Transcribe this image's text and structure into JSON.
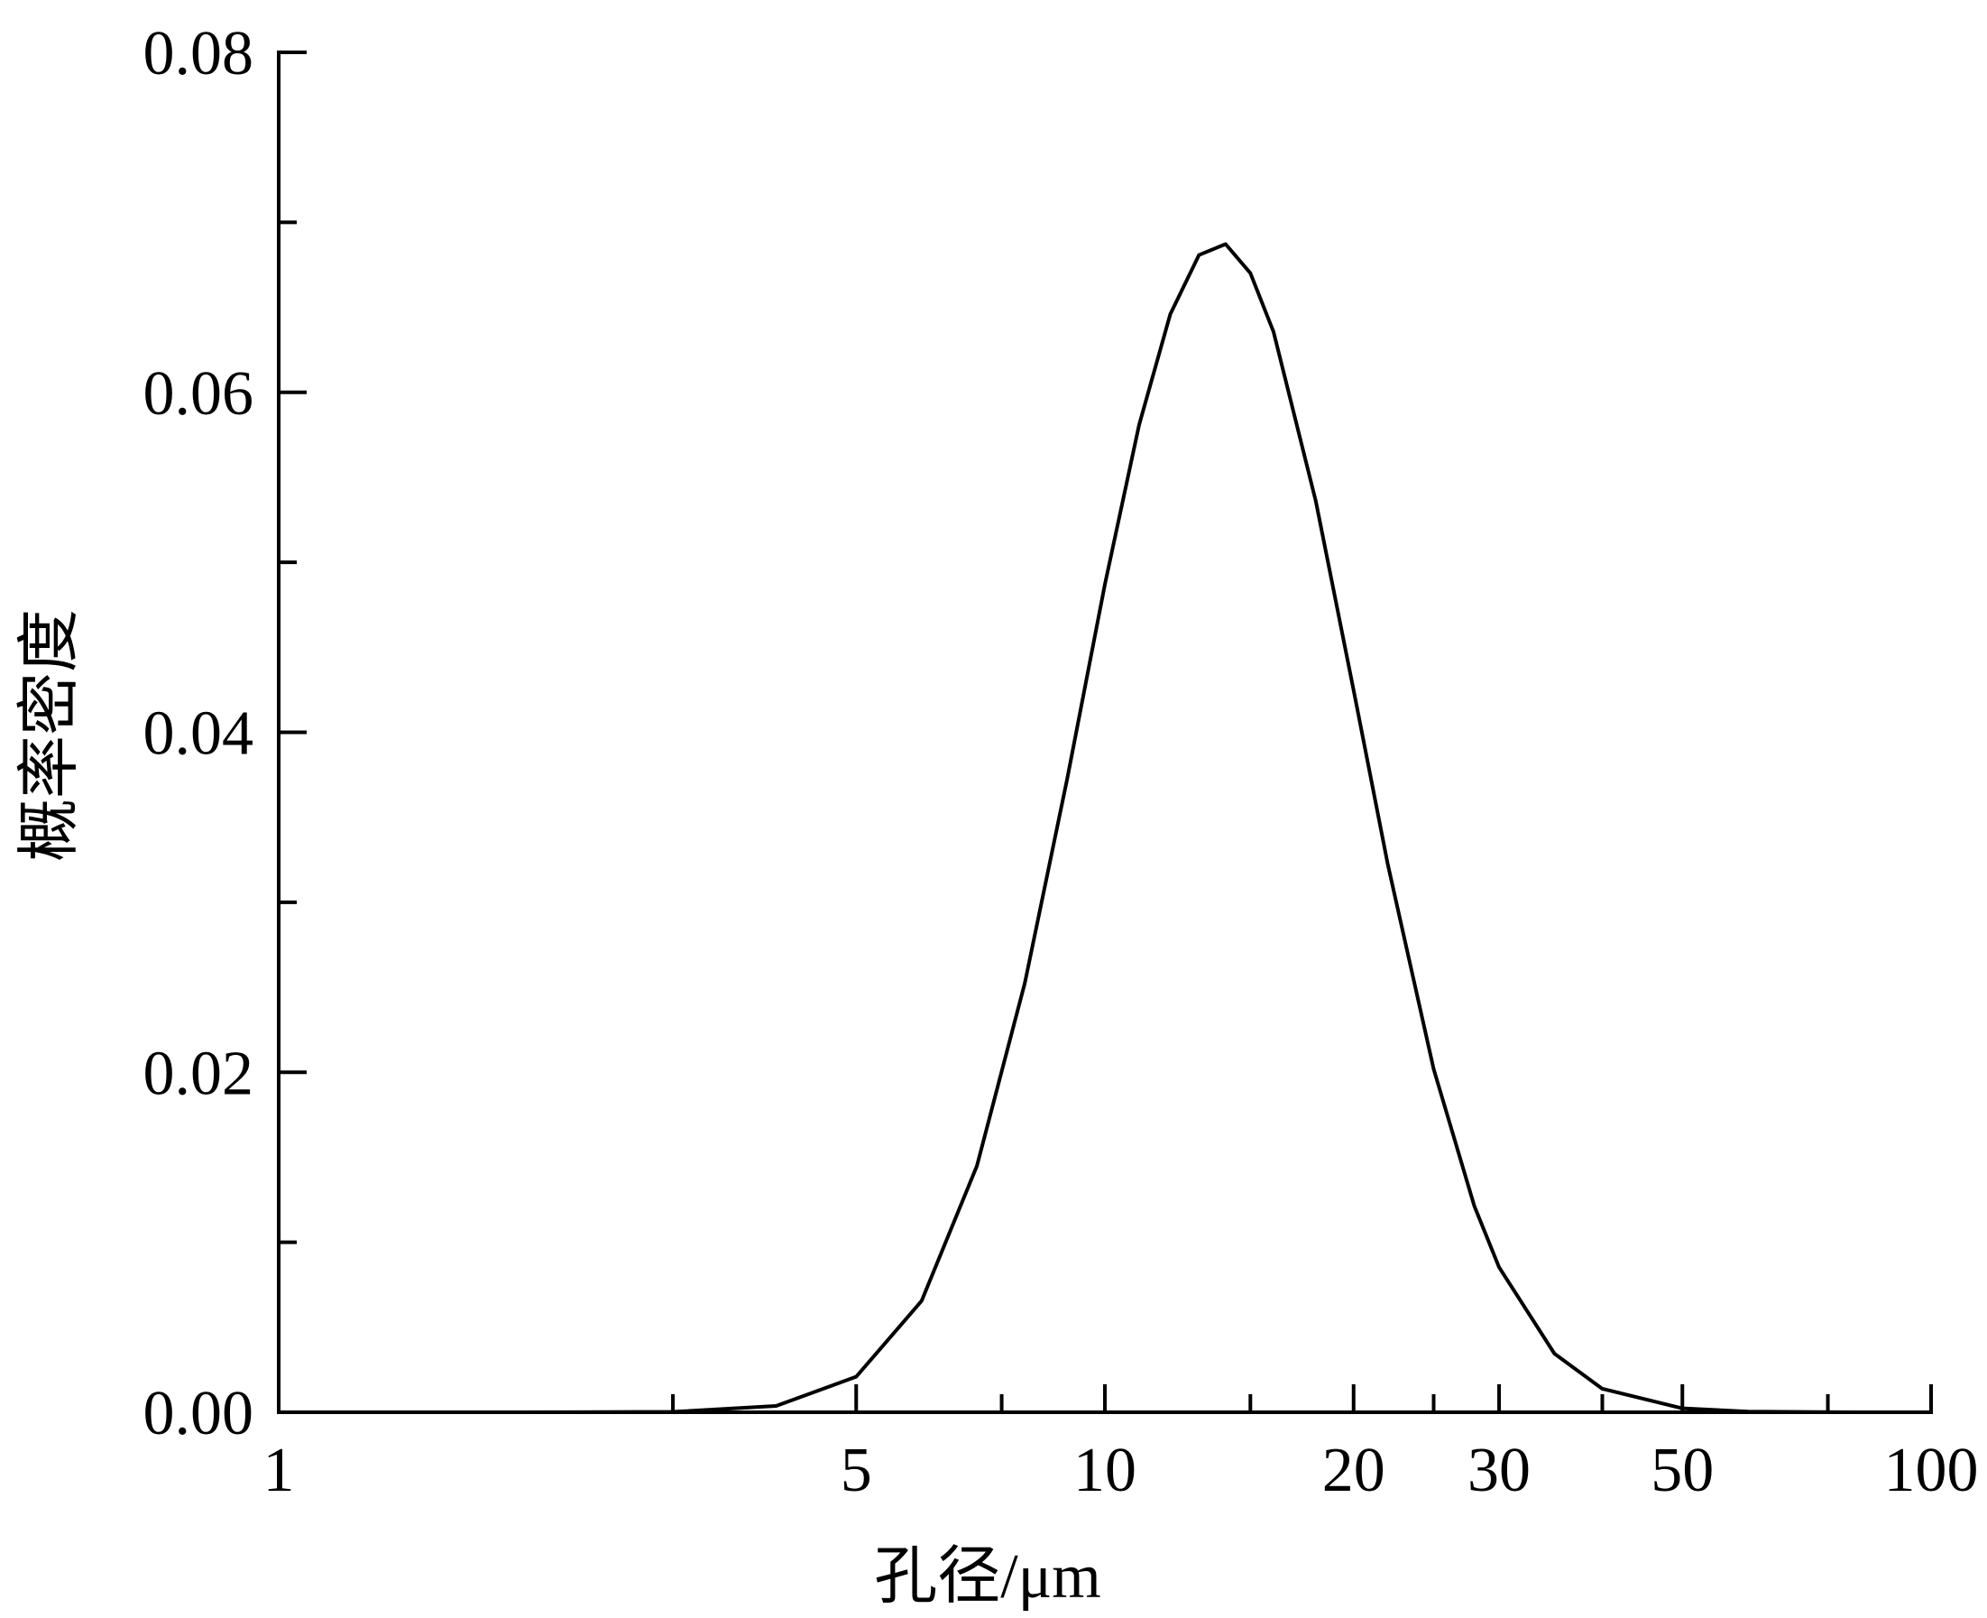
{
  "chart_data": {
    "type": "line",
    "x_label": "孔径/μm",
    "y_label": "概率密度",
    "xscale": "log",
    "grid": false,
    "color": "#000000",
    "x": [
      1,
      2,
      3,
      4,
      5,
      6,
      7,
      8,
      9,
      10,
      11,
      12,
      13,
      14,
      15,
      16,
      18,
      20,
      22,
      25,
      28,
      30,
      35,
      40,
      50,
      60,
      80,
      100
    ],
    "values": [
      0,
      0,
      2.5e-05,
      0.00037,
      0.00209,
      0.00655,
      0.01449,
      0.02525,
      0.03723,
      0.0487,
      0.05808,
      0.0646,
      0.06808,
      0.06872,
      0.06701,
      0.06356,
      0.0536,
      0.04248,
      0.03223,
      0.02019,
      0.01213,
      0.00853,
      0.00345,
      0.00138,
      0.00023,
      4e-05,
      0,
      0
    ],
    "xlim": [
      1,
      100
    ],
    "xticks": [
      1,
      5,
      10,
      20,
      30,
      50,
      100
    ],
    "xminorticks": [
      3,
      7.5,
      15,
      25,
      40,
      75
    ],
    "ylim": [
      0,
      0.08
    ],
    "yticks": [
      {
        "value": 0,
        "label": "0.00"
      },
      0.02,
      0.04,
      0.06,
      0.08
    ],
    "yminorticks": [
      0.01,
      0.03,
      0.05,
      0.07
    ]
  }
}
